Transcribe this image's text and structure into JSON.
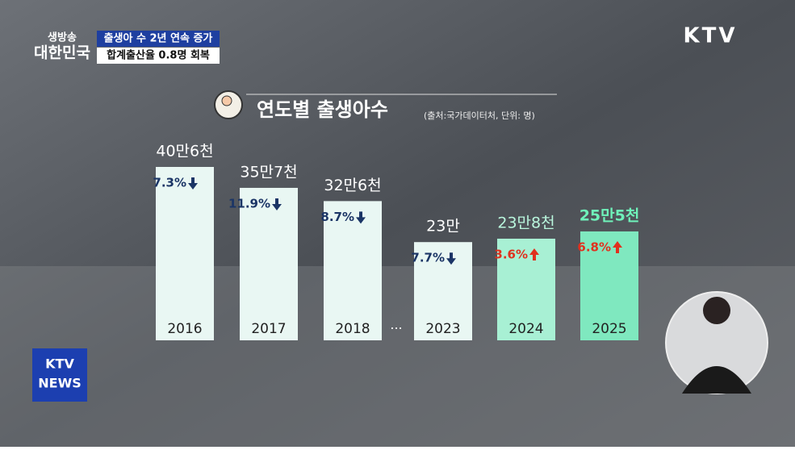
{
  "program": {
    "logo_top": "생방송",
    "logo_bottom": "대한민국",
    "headline": "출생아 수 2년 연속 증가",
    "subheadline": "합계출산율 0.8명 회복",
    "channel": "KTV",
    "news_badge_top": "KTV",
    "news_badge_bottom": "NEWS"
  },
  "chart_data": {
    "type": "bar",
    "title": "연도별 출생아수",
    "subtitle": "(출처:국가데이터처, 단위: 명)",
    "categories": [
      "2016",
      "2017",
      "2018",
      "2023",
      "2024",
      "2025"
    ],
    "values": [
      406000,
      357000,
      326000,
      230000,
      238000,
      255000
    ],
    "value_labels": [
      "40만6천",
      "35만7천",
      "32만6천",
      "23만",
      "23만8천",
      "25만5천"
    ],
    "colors": [
      "#e9f7f3",
      "#e9f7f3",
      "#e9f7f3",
      "#e9f7f3",
      "#a8f0d4",
      "#7fe8bf"
    ],
    "label_colors": [
      "#ffffff",
      "#ffffff",
      "#ffffff",
      "#ffffff",
      "#b9f6dd",
      "#6ff2ba"
    ],
    "gap_marker": "···",
    "change": {
      "values": [
        7.3,
        11.9,
        8.7,
        7.7,
        3.6,
        6.8
      ],
      "value_labels": [
        "7.3%",
        "11.9%",
        "8.7%",
        "7.7%",
        "3.6%",
        "6.8%"
      ],
      "directions": [
        "down",
        "down",
        "down",
        "down",
        "up",
        "up"
      ]
    },
    "ylim": [
      0,
      406000
    ]
  }
}
